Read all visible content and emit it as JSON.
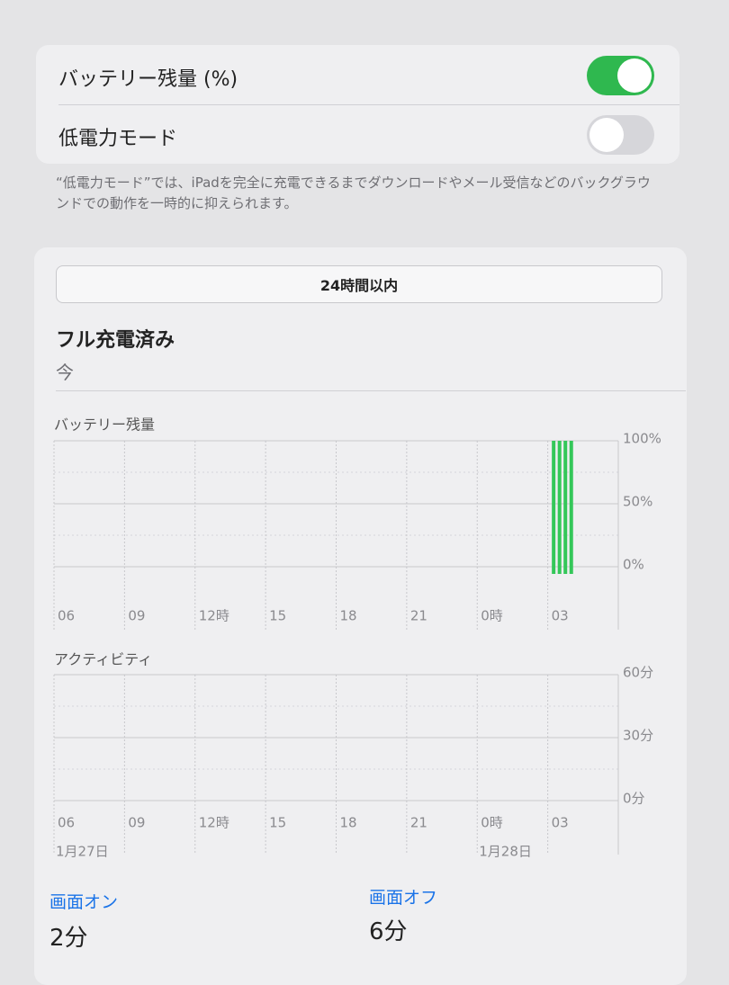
{
  "settings": {
    "rows": [
      {
        "label": "バッテリー残量 (%)",
        "on": true
      },
      {
        "label": "低電力モード",
        "on": false
      }
    ],
    "footer": "“低電力モード”では、iPadを完全に充電できるまでダウンロードやメール受信などのバックグラウンドでの動作を一時的に抑えられます。"
  },
  "segment": "24時間以内",
  "status": {
    "title": "フル充電済み",
    "time": "今"
  },
  "battery_chart": {
    "type": "bar",
    "title": "バッテリー残量",
    "color": "#34c759",
    "x": [
      21.25,
      21.5,
      21.75,
      22
    ],
    "values": [
      100,
      100,
      100,
      100
    ],
    "xlim": [
      0,
      24
    ],
    "xticks": [
      {
        "value": 0,
        "label": "06"
      },
      {
        "value": 3,
        "label": "09"
      },
      {
        "value": 6,
        "label": "12時"
      },
      {
        "value": 9,
        "label": "15"
      },
      {
        "value": 12,
        "label": "18"
      },
      {
        "value": 15,
        "label": "21"
      },
      {
        "value": 18,
        "label": "0時"
      },
      {
        "value": 21,
        "label": "03"
      }
    ],
    "ylim": [
      0,
      100
    ],
    "yticks": [
      {
        "value": 100,
        "label": "100%"
      },
      {
        "value": 50,
        "label": "50%"
      },
      {
        "value": 0,
        "label": "0%"
      }
    ]
  },
  "activity_chart": {
    "type": "bar",
    "title": "アクティビティ",
    "xlim": [
      0,
      24
    ],
    "xticks": [
      {
        "value": 0,
        "label": "06"
      },
      {
        "value": 3,
        "label": "09"
      },
      {
        "value": 6,
        "label": "12時"
      },
      {
        "value": 9,
        "label": "15"
      },
      {
        "value": 12,
        "label": "18"
      },
      {
        "value": 15,
        "label": "21"
      },
      {
        "value": 18,
        "label": "0時"
      },
      {
        "value": 21,
        "label": "03"
      }
    ],
    "ylim": [
      0,
      60
    ],
    "yticks": [
      {
        "value": 60,
        "label": "60分"
      },
      {
        "value": 30,
        "label": "30分"
      },
      {
        "value": 0,
        "label": "0分"
      }
    ],
    "date_labels": [
      {
        "value": 0,
        "label": "1月27日"
      },
      {
        "value": 18,
        "label": "1月28日"
      }
    ]
  },
  "screen_time": [
    {
      "label": "画面オン",
      "value": "2分"
    },
    {
      "label": "画面オフ",
      "value": "6分"
    }
  ]
}
